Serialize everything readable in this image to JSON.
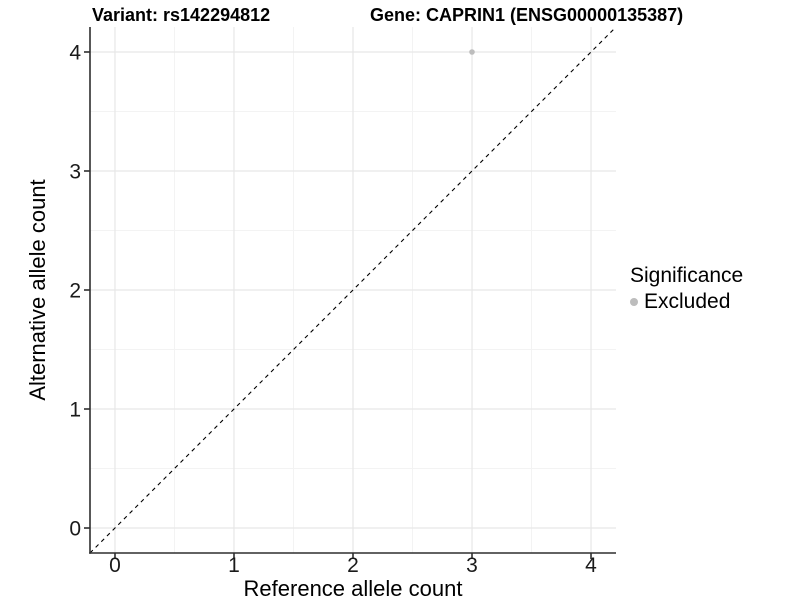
{
  "chart_data": {
    "type": "scatter",
    "titles": {
      "left": "Variant: rs142294812",
      "right": "Gene: CAPRIN1 (ENSG00000135387)"
    },
    "xlabel": "Reference allele count",
    "ylabel": "Alternative allele count",
    "xlim": [
      -0.21,
      4.21
    ],
    "ylim": [
      -0.21,
      4.21
    ],
    "x_ticks": [
      0,
      1,
      2,
      3,
      4
    ],
    "y_ticks": [
      0,
      1,
      2,
      3,
      4
    ],
    "x_minor_ticks": [
      0.5,
      1.5,
      2.5,
      3.5
    ],
    "y_minor_ticks": [
      0.5,
      1.5,
      2.5,
      3.5
    ],
    "grid": "on",
    "identity_line": {
      "style": "dashed",
      "color": "#000000",
      "from": [
        -0.21,
        -0.21
      ],
      "to": [
        4.21,
        4.21
      ]
    },
    "series": [
      {
        "name": "Excluded",
        "color": "#bdbdbd",
        "points": [
          {
            "x": 3,
            "y": 4
          }
        ]
      }
    ],
    "legend": {
      "title": "Significance",
      "position": "right",
      "items": [
        {
          "label": "Excluded",
          "color": "#bdbdbd"
        }
      ]
    },
    "colors": {
      "grid_major": "#e7e7e7",
      "grid_minor": "#f3f3f3",
      "axis_line": "#2e2e2e",
      "tick_text": "#1a1a1a",
      "background": "#ffffff"
    }
  }
}
